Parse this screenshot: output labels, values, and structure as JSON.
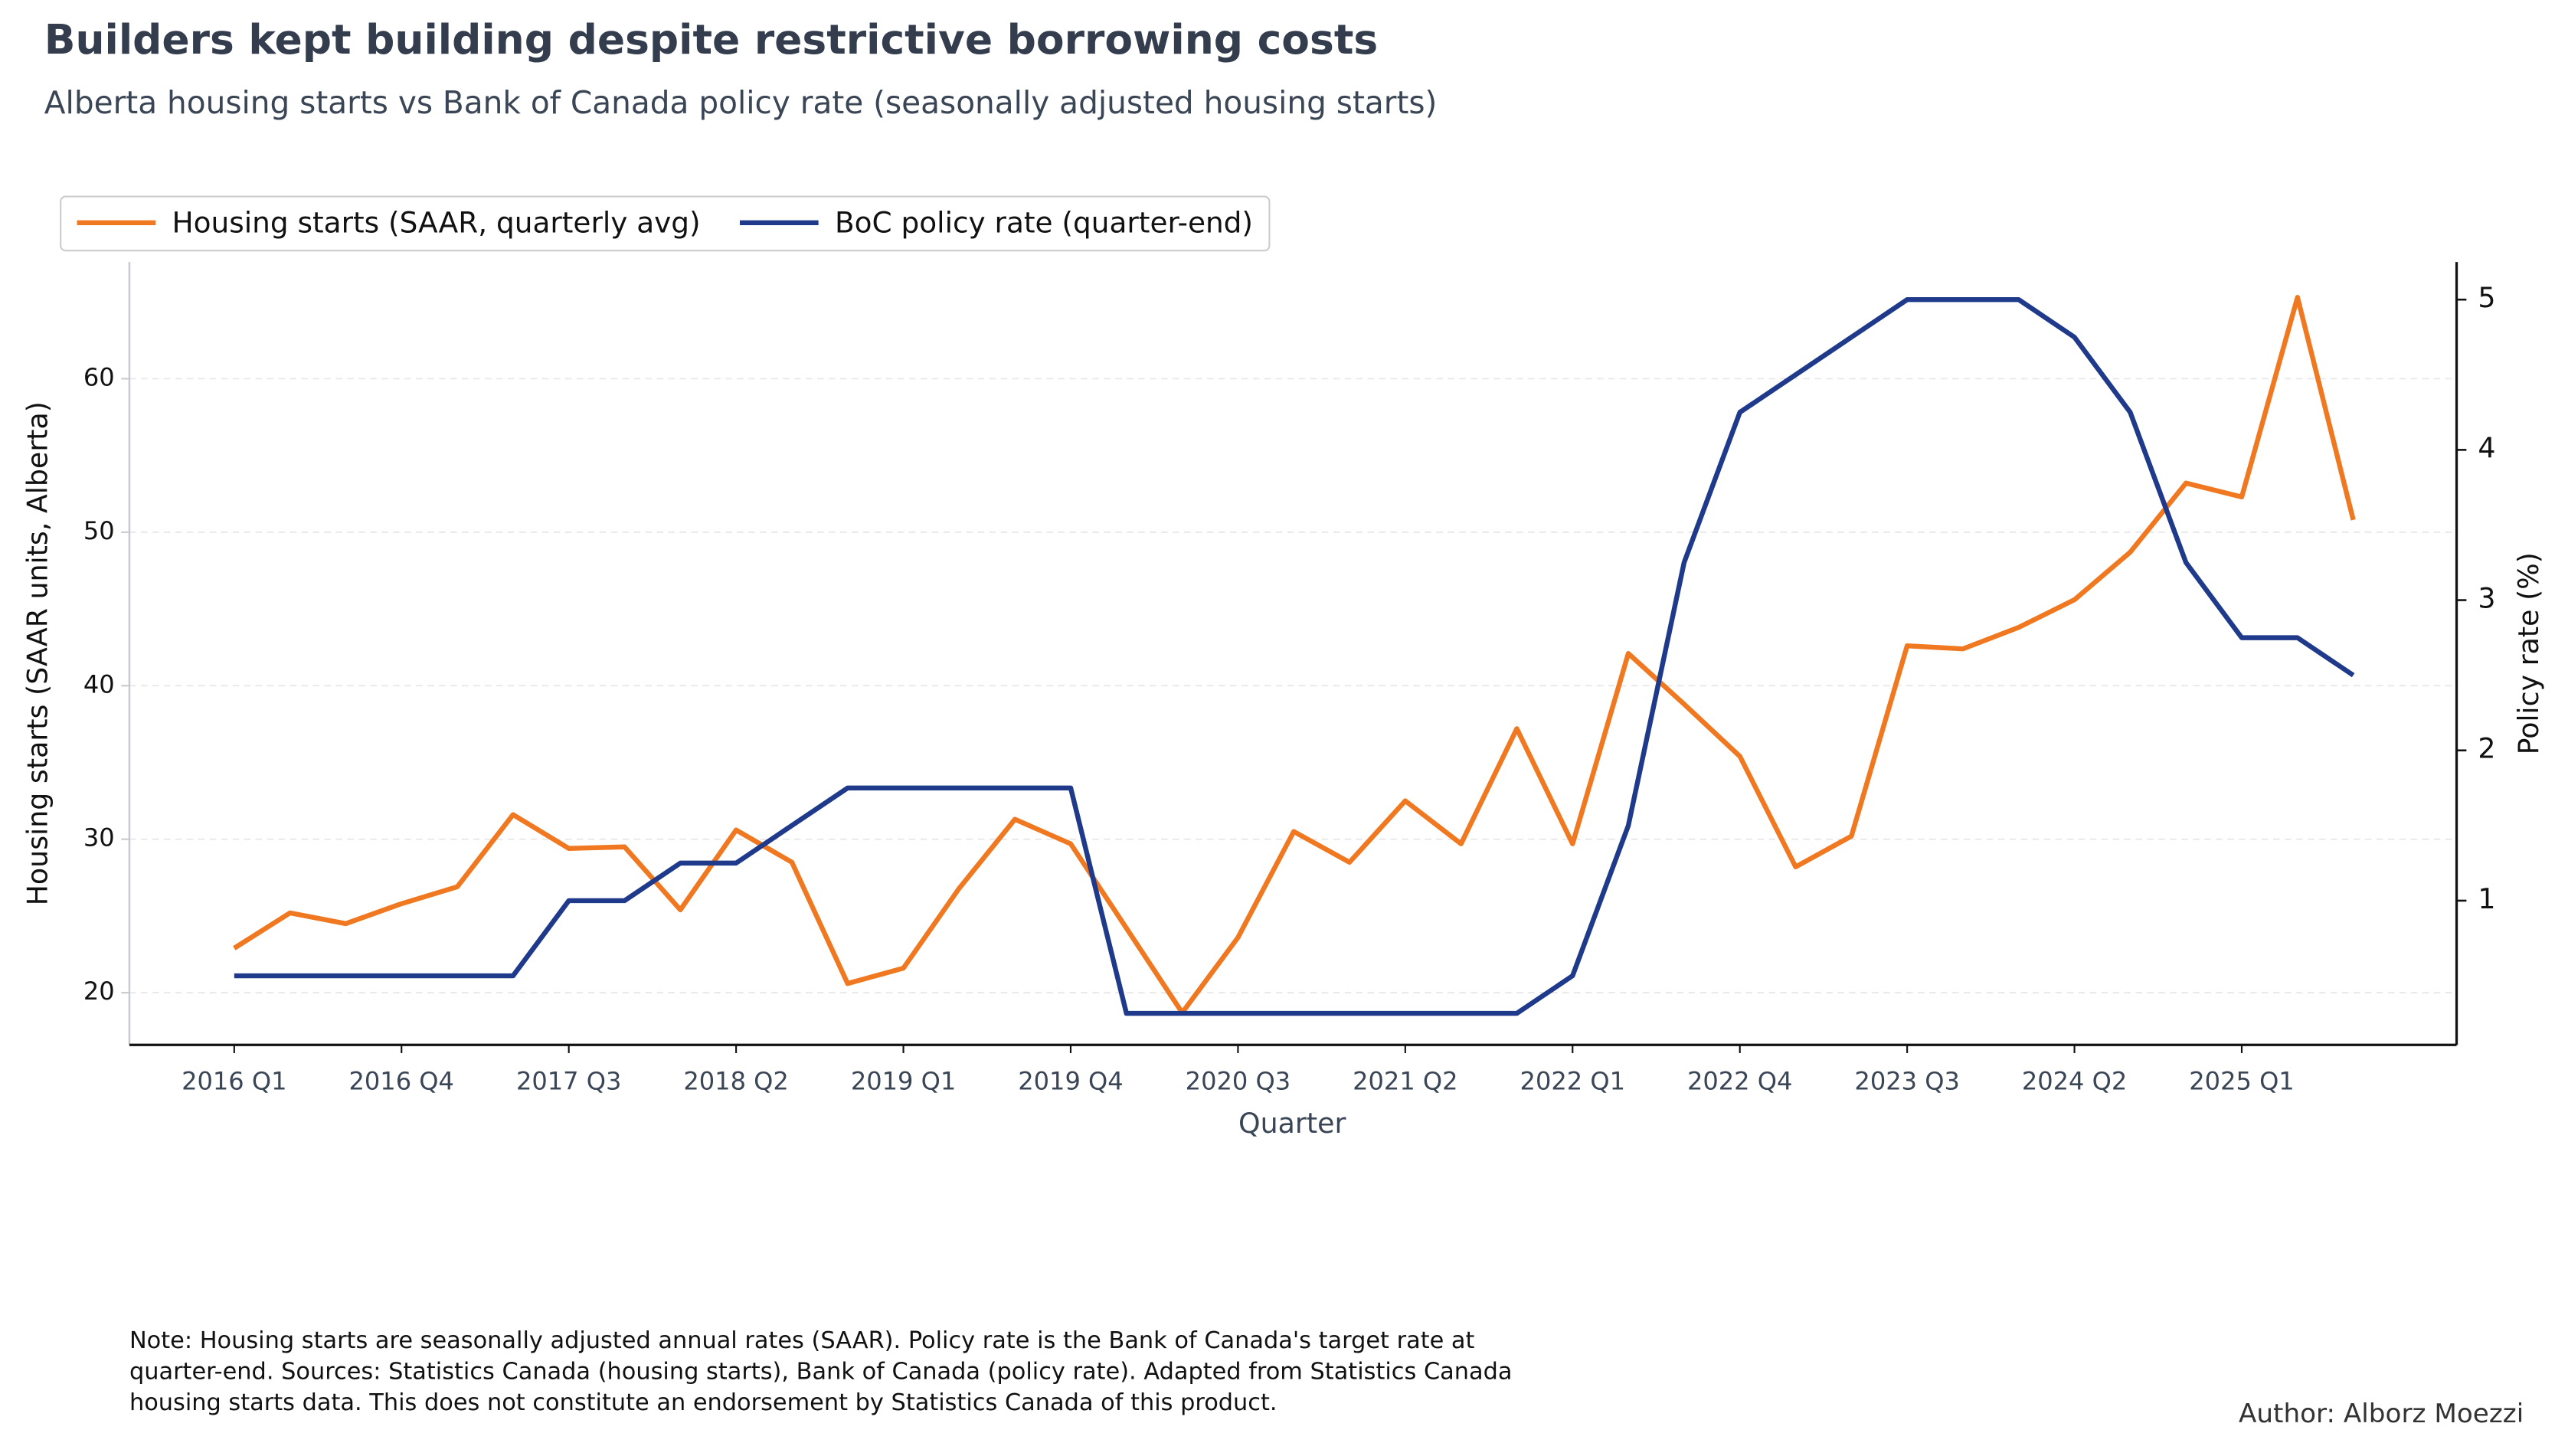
{
  "chart_data": {
    "type": "line",
    "title": "Builders kept building despite restrictive borrowing costs",
    "subtitle": "Alberta housing starts vs Bank of Canada policy rate (seasonally adjusted housing starts)",
    "xlabel": "Quarter",
    "ylabel": "Housing starts (SAAR units, Alberta)",
    "y2label": "Policy rate (%)",
    "categories": [
      "2016 Q1",
      null,
      null,
      "2016 Q4",
      null,
      null,
      "2017 Q3",
      null,
      null,
      "2018 Q2",
      null,
      null,
      "2019 Q1",
      null,
      null,
      "2019 Q4",
      null,
      null,
      "2020 Q3",
      null,
      null,
      "2021 Q2",
      null,
      null,
      "2022 Q1",
      null,
      null,
      "2022 Q4",
      null,
      null,
      "2023 Q3",
      null,
      null,
      "2024 Q2",
      null,
      null,
      "2025 Q1",
      null,
      null
    ],
    "series": [
      {
        "name": "Housing starts (SAAR, quarterly avg)",
        "color": "#f07820",
        "axis": "y",
        "values": [
          22.9,
          25.2,
          24.5,
          25.8,
          26.9,
          31.6,
          29.4,
          29.5,
          25.4,
          30.6,
          28.5,
          20.6,
          21.6,
          26.8,
          31.3,
          29.7,
          24.2,
          18.7,
          23.6,
          30.5,
          28.5,
          32.5,
          29.7,
          37.2,
          29.7,
          42.1,
          38.8,
          35.4,
          28.2,
          30.2,
          42.6,
          42.4,
          43.8,
          45.6,
          48.7,
          53.2,
          52.3,
          65.3,
          50.8
        ]
      },
      {
        "name": "BoC policy rate (quarter-end)",
        "color": "#1f3a8a",
        "axis": "y2",
        "values": [
          0.5,
          0.5,
          0.5,
          0.5,
          0.5,
          0.5,
          1.0,
          1.0,
          1.25,
          1.25,
          1.5,
          1.75,
          1.75,
          1.75,
          1.75,
          1.75,
          0.25,
          0.25,
          0.25,
          0.25,
          0.25,
          0.25,
          0.25,
          0.25,
          0.5,
          1.5,
          3.25,
          4.25,
          4.5,
          4.75,
          5,
          5,
          5,
          4.75,
          4.25,
          3.25,
          2.75,
          2.75,
          2.5
        ]
      }
    ],
    "ylim": [
      16.6,
      67.6
    ],
    "yticks": [
      20,
      30,
      40,
      50,
      60
    ],
    "y2lim": [
      0.04,
      5.25
    ],
    "y2ticks": [
      1,
      2,
      3,
      4,
      5
    ],
    "grid": true,
    "legend": "upper-left",
    "note": [
      "Note: Housing starts are seasonally adjusted annual rates (SAAR). Policy rate is the Bank of Canada's target rate at",
      "quarter-end. Sources: Statistics Canada (housing starts), Bank of Canada (policy rate). Adapted from Statistics Canada",
      "housing starts data. This does not constitute an endorsement by Statistics Canada of this product."
    ],
    "author": "Author: Alborz Moezzi"
  }
}
